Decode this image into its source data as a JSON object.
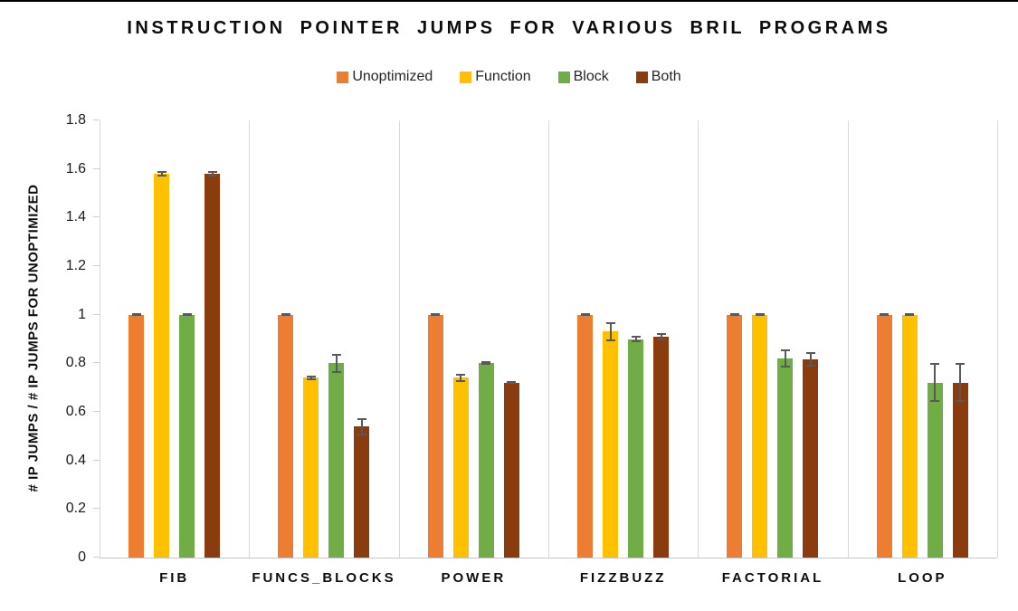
{
  "title": "INSTRUCTION POINTER JUMPS FOR VARIOUS BRIL PROGRAMS",
  "chart_data": {
    "type": "bar",
    "title": "INSTRUCTION POINTER JUMPS FOR VARIOUS BRIL PROGRAMS",
    "xlabel": "",
    "ylabel": "# IP JUMPS / # IP JUMPS FOR UNOPTIMIZED",
    "ylim": [
      0,
      1.8
    ],
    "ytick_labels": [
      "0",
      "0.2",
      "0.4",
      "0.6",
      "0.8",
      "1",
      "1.2",
      "1.4",
      "1.6",
      "1.8"
    ],
    "ytick_values": [
      0,
      0.2,
      0.4,
      0.6,
      0.8,
      1,
      1.2,
      1.4,
      1.6,
      1.8
    ],
    "grid": "vertical category separator lines only, no horizontal gridlines",
    "legend_position": "top-center",
    "error_bars": true,
    "error_bar_color": "#595959",
    "axis_line_color": "#D9D9D9",
    "categories": [
      "FIB",
      "FUNCS_BLOCKS",
      "POWER",
      "FIZZBUZZ",
      "FACTORIAL",
      "LOOP"
    ],
    "series": [
      {
        "name": "Unoptimized",
        "color": "#ED7D31",
        "values": [
          1.0,
          1.0,
          1.0,
          1.0,
          1.0,
          1.0
        ],
        "errors": [
          0.005,
          0.005,
          0.005,
          0.005,
          0.005,
          0.005
        ]
      },
      {
        "name": "Function",
        "color": "#FFC000",
        "values": [
          1.58,
          0.74,
          0.74,
          0.93,
          1.0,
          1.0
        ],
        "errors": [
          0.012,
          0.01,
          0.018,
          0.04,
          0.006,
          0.006
        ]
      },
      {
        "name": "Block",
        "color": "#70AD47",
        "values": [
          1.0,
          0.8,
          0.8,
          0.9,
          0.82,
          0.72
        ],
        "errors": [
          0.005,
          0.04,
          0.008,
          0.012,
          0.036,
          0.08
        ]
      },
      {
        "name": "Both",
        "color": "#8B3C0E",
        "values": [
          1.58,
          0.54,
          0.72,
          0.91,
          0.815,
          0.72
        ],
        "errors": [
          0.012,
          0.035,
          0.006,
          0.015,
          0.03,
          0.08
        ]
      }
    ]
  }
}
